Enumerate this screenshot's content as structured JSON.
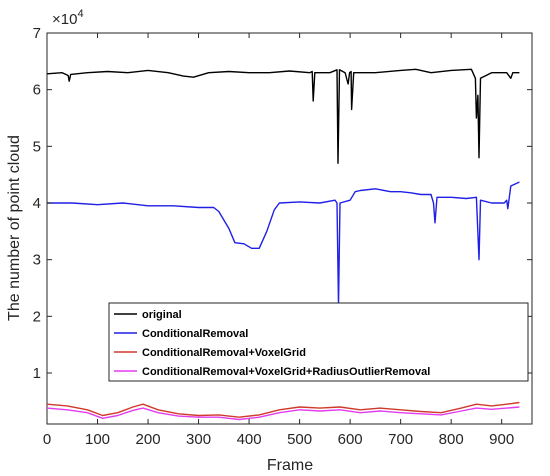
{
  "chart_data": {
    "type": "line",
    "title": "",
    "xlabel": "Frame",
    "ylabel": "The number of point cloud",
    "y_exponent_label": "×10",
    "y_exponent_power": "4",
    "xlim": [
      0,
      960
    ],
    "ylim": [
      0.1,
      7
    ],
    "x_ticks": [
      0,
      100,
      200,
      300,
      400,
      500,
      600,
      700,
      800,
      900
    ],
    "x_tick_labels": [
      "0",
      "100",
      "200",
      "300",
      "400",
      "500",
      "600",
      "700",
      "800",
      "900"
    ],
    "y_ticks": [
      1,
      2,
      3,
      4,
      5,
      6,
      7
    ],
    "y_tick_labels": [
      "1",
      "2",
      "3",
      "4",
      "5",
      "6",
      "7"
    ],
    "grid": false,
    "legend_position": "lower-right",
    "series": [
      {
        "name": "original",
        "color": "#000000",
        "points": [
          [
            0,
            6.28
          ],
          [
            30,
            6.3
          ],
          [
            42,
            6.25
          ],
          [
            44,
            6.15
          ],
          [
            47,
            6.27
          ],
          [
            80,
            6.3
          ],
          [
            120,
            6.32
          ],
          [
            160,
            6.3
          ],
          [
            200,
            6.34
          ],
          [
            240,
            6.3
          ],
          [
            270,
            6.24
          ],
          [
            290,
            6.22
          ],
          [
            320,
            6.3
          ],
          [
            360,
            6.32
          ],
          [
            400,
            6.3
          ],
          [
            440,
            6.3
          ],
          [
            480,
            6.33
          ],
          [
            520,
            6.3
          ],
          [
            525,
            6.32
          ],
          [
            527,
            5.8
          ],
          [
            530,
            6.3
          ],
          [
            560,
            6.3
          ],
          [
            574,
            6.35
          ],
          [
            576,
            4.7
          ],
          [
            579,
            6.35
          ],
          [
            590,
            6.3
          ],
          [
            596,
            6.1
          ],
          [
            599,
            6.3
          ],
          [
            602,
            6.32
          ],
          [
            603,
            5.65
          ],
          [
            607,
            6.3
          ],
          [
            650,
            6.3
          ],
          [
            700,
            6.34
          ],
          [
            730,
            6.36
          ],
          [
            760,
            6.3
          ],
          [
            800,
            6.34
          ],
          [
            840,
            6.36
          ],
          [
            848,
            6.2
          ],
          [
            850,
            5.5
          ],
          [
            853,
            5.9
          ],
          [
            855,
            4.8
          ],
          [
            858,
            6.2
          ],
          [
            880,
            6.3
          ],
          [
            910,
            6.3
          ],
          [
            918,
            6.2
          ],
          [
            922,
            6.3
          ],
          [
            935,
            6.3
          ]
        ]
      },
      {
        "name": "ConditionalRemoval",
        "color": "#1f1fe6",
        "points": [
          [
            0,
            4.0
          ],
          [
            50,
            4.0
          ],
          [
            100,
            3.97
          ],
          [
            150,
            4.0
          ],
          [
            200,
            3.95
          ],
          [
            250,
            3.95
          ],
          [
            300,
            3.92
          ],
          [
            330,
            3.92
          ],
          [
            340,
            3.85
          ],
          [
            360,
            3.55
          ],
          [
            372,
            3.3
          ],
          [
            390,
            3.28
          ],
          [
            405,
            3.2
          ],
          [
            420,
            3.2
          ],
          [
            435,
            3.5
          ],
          [
            450,
            3.88
          ],
          [
            460,
            4.0
          ],
          [
            500,
            4.02
          ],
          [
            540,
            4.0
          ],
          [
            570,
            4.05
          ],
          [
            574,
            4.0
          ],
          [
            577,
            2.2
          ],
          [
            580,
            4.0
          ],
          [
            600,
            4.05
          ],
          [
            610,
            4.2
          ],
          [
            620,
            4.22
          ],
          [
            650,
            4.25
          ],
          [
            680,
            4.2
          ],
          [
            700,
            4.2
          ],
          [
            720,
            4.18
          ],
          [
            740,
            4.15
          ],
          [
            760,
            4.15
          ],
          [
            765,
            4.0
          ],
          [
            768,
            3.65
          ],
          [
            772,
            4.1
          ],
          [
            800,
            4.1
          ],
          [
            830,
            4.08
          ],
          [
            850,
            4.1
          ],
          [
            855,
            3.0
          ],
          [
            858,
            4.05
          ],
          [
            880,
            4.0
          ],
          [
            905,
            4.0
          ],
          [
            910,
            4.05
          ],
          [
            912,
            3.9
          ],
          [
            918,
            4.3
          ],
          [
            930,
            4.35
          ],
          [
            935,
            4.37
          ]
        ]
      },
      {
        "name": "ConditionalRemoval+VoxelGrid",
        "color": "#d0392b",
        "points": [
          [
            0,
            0.45
          ],
          [
            40,
            0.42
          ],
          [
            80,
            0.35
          ],
          [
            110,
            0.25
          ],
          [
            140,
            0.3
          ],
          [
            170,
            0.4
          ],
          [
            190,
            0.45
          ],
          [
            220,
            0.35
          ],
          [
            260,
            0.28
          ],
          [
            300,
            0.25
          ],
          [
            340,
            0.26
          ],
          [
            380,
            0.22
          ],
          [
            420,
            0.26
          ],
          [
            460,
            0.35
          ],
          [
            500,
            0.4
          ],
          [
            540,
            0.38
          ],
          [
            580,
            0.4
          ],
          [
            620,
            0.35
          ],
          [
            660,
            0.38
          ],
          [
            700,
            0.35
          ],
          [
            740,
            0.32
          ],
          [
            780,
            0.3
          ],
          [
            820,
            0.38
          ],
          [
            850,
            0.45
          ],
          [
            880,
            0.42
          ],
          [
            910,
            0.45
          ],
          [
            935,
            0.48
          ]
        ]
      },
      {
        "name": "ConditionalRemoval+VoxelGrid+RadiusOutlierRemoval",
        "color": "#e23cf0",
        "points": [
          [
            0,
            0.38
          ],
          [
            40,
            0.35
          ],
          [
            80,
            0.3
          ],
          [
            110,
            0.2
          ],
          [
            140,
            0.25
          ],
          [
            170,
            0.34
          ],
          [
            190,
            0.38
          ],
          [
            220,
            0.3
          ],
          [
            260,
            0.24
          ],
          [
            300,
            0.22
          ],
          [
            340,
            0.22
          ],
          [
            380,
            0.18
          ],
          [
            420,
            0.22
          ],
          [
            460,
            0.3
          ],
          [
            500,
            0.35
          ],
          [
            540,
            0.33
          ],
          [
            580,
            0.35
          ],
          [
            620,
            0.3
          ],
          [
            660,
            0.33
          ],
          [
            700,
            0.3
          ],
          [
            740,
            0.28
          ],
          [
            780,
            0.26
          ],
          [
            820,
            0.33
          ],
          [
            850,
            0.38
          ],
          [
            880,
            0.36
          ],
          [
            910,
            0.38
          ],
          [
            935,
            0.4
          ]
        ]
      }
    ]
  }
}
